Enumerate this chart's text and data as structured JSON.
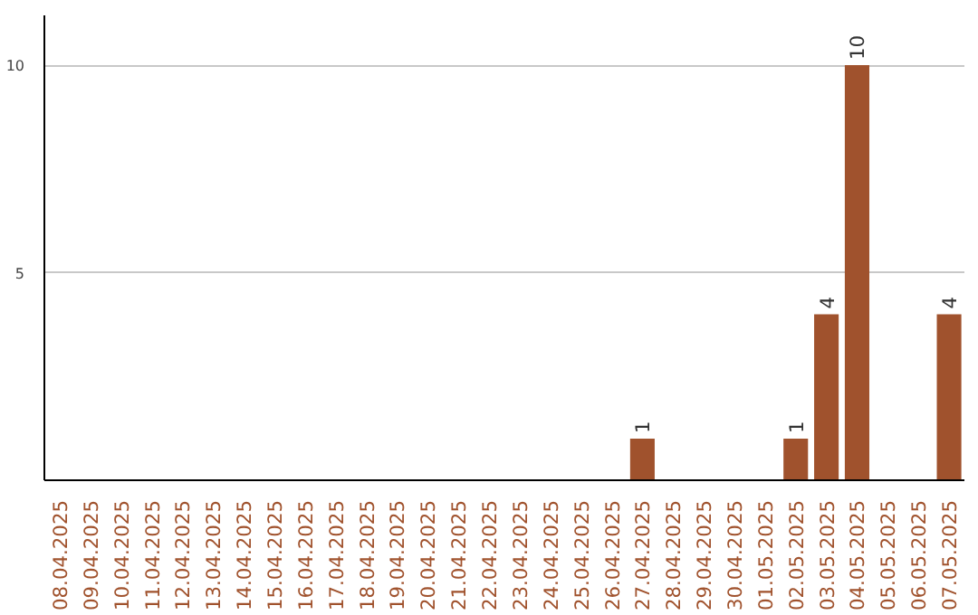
{
  "chart_data": {
    "type": "bar",
    "categories": [
      "08.04.2025",
      "09.04.2025",
      "10.04.2025",
      "11.04.2025",
      "12.04.2025",
      "13.04.2025",
      "14.04.2025",
      "15.04.2025",
      "16.04.2025",
      "17.04.2025",
      "18.04.2025",
      "19.04.2025",
      "20.04.2025",
      "21.04.2025",
      "22.04.2025",
      "23.04.2025",
      "24.04.2025",
      "25.04.2025",
      "26.04.2025",
      "27.04.2025",
      "28.04.2025",
      "29.04.2025",
      "30.04.2025",
      "01.05.2025",
      "02.05.2025",
      "03.05.2025",
      "04.05.2025",
      "05.05.2025",
      "06.05.2025",
      "07.05.2025"
    ],
    "values": [
      0,
      0,
      0,
      0,
      0,
      0,
      0,
      0,
      0,
      0,
      0,
      0,
      0,
      0,
      0,
      0,
      0,
      0,
      0,
      1,
      0,
      0,
      0,
      0,
      1,
      4,
      10,
      0,
      0,
      4
    ],
    "value_labels": [
      null,
      null,
      null,
      null,
      null,
      null,
      null,
      null,
      null,
      null,
      null,
      null,
      null,
      null,
      null,
      null,
      null,
      null,
      null,
      "1",
      null,
      null,
      null,
      null,
      "1",
      "4",
      "10",
      null,
      null,
      "4"
    ],
    "color": "#a0522d",
    "ylim": [
      0,
      11.2
    ],
    "yticks": [
      5,
      10
    ],
    "grid": "y"
  }
}
